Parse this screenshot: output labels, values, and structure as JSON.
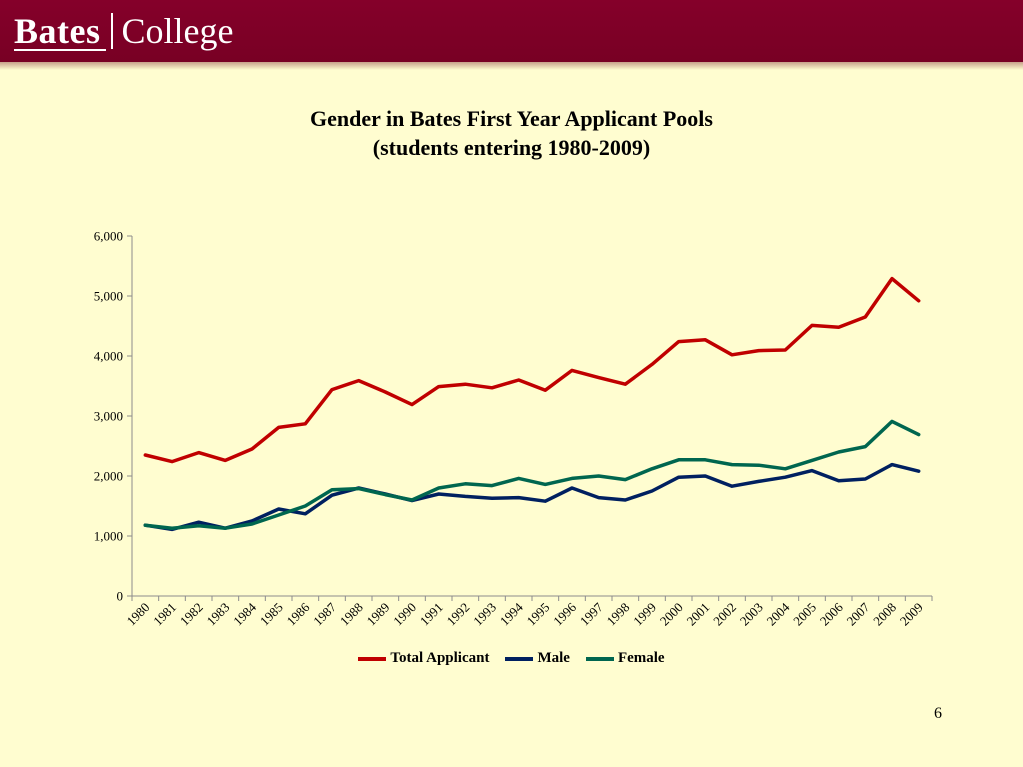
{
  "header": {
    "logo_left": "Bates",
    "logo_right": "College",
    "colors": {
      "banner": "#7e0027",
      "background": "#fffdd0"
    }
  },
  "slide": {
    "page_number": "6"
  },
  "chart_data": {
    "type": "line",
    "title": "Gender in Bates First Year Applicant Pools",
    "subtitle": "(students entering 1980-2009)",
    "xlabel": "",
    "ylabel": "",
    "x": [
      "1980",
      "1981",
      "1982",
      "1983",
      "1984",
      "1985",
      "1986",
      "1987",
      "1988",
      "1989",
      "1990",
      "1991",
      "1992",
      "1993",
      "1994",
      "1995",
      "1996",
      "1997",
      "1998",
      "1999",
      "2000",
      "2001",
      "2002",
      "2003",
      "2004",
      "2005",
      "2006",
      "2007",
      "2008",
      "2009"
    ],
    "ylim": [
      0,
      6000
    ],
    "yticks": [
      0,
      1000,
      2000,
      3000,
      4000,
      5000,
      6000
    ],
    "ytick_labels": [
      "0",
      "1,000",
      "2,000",
      "3,000",
      "4,000",
      "5,000",
      "6,000"
    ],
    "grid": false,
    "legend_position": "bottom",
    "series": [
      {
        "name": "Total Applicant",
        "color": "#c00000",
        "values": [
          2350,
          2240,
          2390,
          2260,
          2450,
          2810,
          2870,
          3440,
          3590,
          3400,
          3190,
          3490,
          3530,
          3470,
          3600,
          3430,
          3760,
          3640,
          3530,
          3860,
          4240,
          4270,
          4020,
          4090,
          4100,
          4510,
          4480,
          4650,
          5290,
          4920
        ]
      },
      {
        "name": "Male",
        "color": "#002060",
        "values": [
          1180,
          1110,
          1230,
          1130,
          1250,
          1450,
          1370,
          1680,
          1800,
          1700,
          1590,
          1700,
          1660,
          1630,
          1640,
          1580,
          1800,
          1640,
          1600,
          1750,
          1980,
          2000,
          1830,
          1910,
          1980,
          2090,
          1920,
          1950,
          2190,
          2080
        ]
      },
      {
        "name": "Female",
        "color": "#00664f",
        "values": [
          1180,
          1130,
          1170,
          1130,
          1200,
          1350,
          1500,
          1770,
          1790,
          1690,
          1600,
          1800,
          1870,
          1840,
          1960,
          1860,
          1960,
          2000,
          1940,
          2120,
          2270,
          2270,
          2190,
          2180,
          2120,
          2260,
          2400,
          2490,
          2910,
          2690
        ]
      }
    ]
  }
}
